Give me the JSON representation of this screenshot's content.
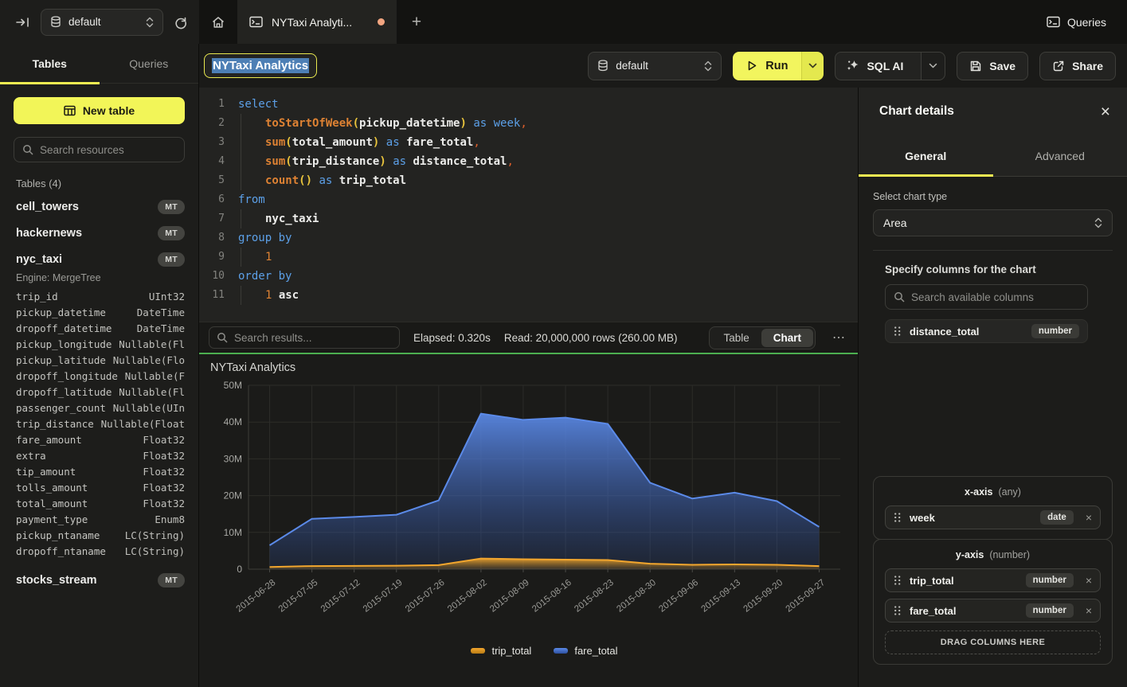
{
  "topbar": {
    "database": "default",
    "tab_title": "NYTaxi Analyti...",
    "plus_label": "+",
    "queries_label": "Queries"
  },
  "sidebar": {
    "tab_tables": "Tables",
    "tab_queries": "Queries",
    "new_table_label": "New table",
    "search_placeholder": "Search resources",
    "section_label": "Tables (4)",
    "items": [
      {
        "type": "table",
        "name": "cell_towers",
        "badge": "MT"
      },
      {
        "type": "table",
        "name": "hackernews",
        "badge": "MT"
      },
      {
        "type": "table",
        "name": "nyc_taxi",
        "badge": "MT"
      },
      {
        "type": "engine",
        "text": "Engine: MergeTree"
      },
      {
        "type": "column",
        "name": "trip_id",
        "dtype": "UInt32"
      },
      {
        "type": "column",
        "name": "pickup_datetime",
        "dtype": "DateTime"
      },
      {
        "type": "column",
        "name": "dropoff_datetime",
        "dtype": "DateTime"
      },
      {
        "type": "column",
        "name": "pickup_longitude",
        "dtype": "Nullable(Fl"
      },
      {
        "type": "column",
        "name": "pickup_latitude",
        "dtype": "Nullable(Flo"
      },
      {
        "type": "column",
        "name": "dropoff_longitude",
        "dtype": "Nullable(F"
      },
      {
        "type": "column",
        "name": "dropoff_latitude",
        "dtype": "Nullable(Fl"
      },
      {
        "type": "column",
        "name": "passenger_count",
        "dtype": "Nullable(UIn"
      },
      {
        "type": "column",
        "name": "trip_distance",
        "dtype": "Nullable(Float"
      },
      {
        "type": "column",
        "name": "fare_amount",
        "dtype": "Float32"
      },
      {
        "type": "column",
        "name": "extra",
        "dtype": "Float32"
      },
      {
        "type": "column",
        "name": "tip_amount",
        "dtype": "Float32"
      },
      {
        "type": "column",
        "name": "tolls_amount",
        "dtype": "Float32"
      },
      {
        "type": "column",
        "name": "total_amount",
        "dtype": "Float32"
      },
      {
        "type": "column",
        "name": "payment_type",
        "dtype": "Enum8"
      },
      {
        "type": "column",
        "name": "pickup_ntaname",
        "dtype": "LC(String)"
      },
      {
        "type": "column",
        "name": "dropoff_ntaname",
        "dtype": "LC(String)"
      },
      {
        "type": "gap"
      },
      {
        "type": "table",
        "name": "stocks_stream",
        "badge": "MT"
      }
    ]
  },
  "toolbar": {
    "title": "NYTaxi Analytics",
    "database": "default",
    "run_label": "Run",
    "sql_ai_label": "SQL AI",
    "save_label": "Save",
    "share_label": "Share"
  },
  "editor": {
    "lines": [
      {
        "n": 1,
        "indent": false,
        "tokens": [
          [
            "kw",
            "select"
          ]
        ]
      },
      {
        "n": 2,
        "indent": true,
        "tokens": [
          [
            "fn",
            "toStartOfWeek"
          ],
          [
            "pa",
            "("
          ],
          [
            "id",
            "pickup_datetime"
          ],
          [
            "pa",
            ")"
          ],
          [
            "tx",
            " "
          ],
          [
            "kw",
            "as"
          ],
          [
            "tx",
            " "
          ],
          [
            "kw",
            "week"
          ],
          [
            "pu",
            ","
          ]
        ]
      },
      {
        "n": 3,
        "indent": true,
        "tokens": [
          [
            "fn",
            "sum"
          ],
          [
            "pa",
            "("
          ],
          [
            "id",
            "total_amount"
          ],
          [
            "pa",
            ")"
          ],
          [
            "tx",
            " "
          ],
          [
            "kw",
            "as"
          ],
          [
            "tx",
            " "
          ],
          [
            "id",
            "fare_total"
          ],
          [
            "pu",
            ","
          ]
        ]
      },
      {
        "n": 4,
        "indent": true,
        "tokens": [
          [
            "fn",
            "sum"
          ],
          [
            "pa",
            "("
          ],
          [
            "id",
            "trip_distance"
          ],
          [
            "pa",
            ")"
          ],
          [
            "tx",
            " "
          ],
          [
            "kw",
            "as"
          ],
          [
            "tx",
            " "
          ],
          [
            "id",
            "distance_total"
          ],
          [
            "pu",
            ","
          ]
        ]
      },
      {
        "n": 5,
        "indent": true,
        "tokens": [
          [
            "fn",
            "count"
          ],
          [
            "pa",
            "()"
          ],
          [
            "tx",
            " "
          ],
          [
            "kw",
            "as"
          ],
          [
            "tx",
            " "
          ],
          [
            "id",
            "trip_total"
          ]
        ]
      },
      {
        "n": 6,
        "indent": false,
        "tokens": [
          [
            "kw",
            "from"
          ]
        ]
      },
      {
        "n": 7,
        "indent": true,
        "tokens": [
          [
            "id",
            "nyc_taxi"
          ]
        ]
      },
      {
        "n": 8,
        "indent": false,
        "tokens": [
          [
            "kw",
            "group by"
          ]
        ]
      },
      {
        "n": 9,
        "indent": true,
        "tokens": [
          [
            "nu",
            "1"
          ]
        ]
      },
      {
        "n": 10,
        "indent": false,
        "tokens": [
          [
            "kw",
            "order by"
          ]
        ]
      },
      {
        "n": 11,
        "indent": true,
        "tokens": [
          [
            "nu",
            "1"
          ],
          [
            "tx",
            " "
          ],
          [
            "id",
            "asc"
          ]
        ]
      }
    ]
  },
  "results": {
    "search_placeholder": "Search results...",
    "elapsed": "Elapsed: 0.320s",
    "read": "Read: 20,000,000 rows (260.00 MB)",
    "toggle_table": "Table",
    "toggle_chart": "Chart",
    "menu": "⋯",
    "progress_color": "#4caf50"
  },
  "chart_data": {
    "type": "area",
    "title": "NYTaxi Analytics",
    "x": [
      "2015-06-28",
      "2015-07-05",
      "2015-07-12",
      "2015-07-19",
      "2015-07-26",
      "2015-08-02",
      "2015-08-09",
      "2015-08-16",
      "2015-08-23",
      "2015-08-30",
      "2015-09-06",
      "2015-09-13",
      "2015-09-20",
      "2015-09-27"
    ],
    "series": [
      {
        "name": "trip_total",
        "color": "#f2a62e",
        "color_dark": "#b97c14",
        "values": [
          600000,
          850000,
          900000,
          950000,
          1100000,
          2900000,
          2700000,
          2600000,
          2500000,
          1500000,
          1200000,
          1300000,
          1200000,
          850000
        ]
      },
      {
        "name": "fare_total",
        "color": "#5b8ae8",
        "color_dark": "#2d4f9e",
        "values": [
          6500000,
          13700000,
          14200000,
          14800000,
          18700000,
          42300000,
          40600000,
          41200000,
          39500000,
          23500000,
          19200000,
          20800000,
          18500000,
          11500000
        ]
      }
    ],
    "ylim": [
      0,
      50000000
    ],
    "yticks": [
      "0",
      "10M",
      "20M",
      "30M",
      "40M",
      "50M"
    ],
    "grid": true,
    "legend_position": "bottom"
  },
  "panel": {
    "title": "Chart details",
    "close": "×",
    "tab_general": "General",
    "tab_advanced": "Advanced",
    "chart_type_label": "Select chart type",
    "chart_type": "Area",
    "columns_label": "Specify columns for the chart",
    "search_placeholder": "Search available columns",
    "available": [
      {
        "name": "distance_total",
        "type": "number"
      }
    ],
    "x_axis": {
      "label": "x-axis",
      "hint": "(any)",
      "items": [
        {
          "name": "week",
          "type": "date"
        }
      ]
    },
    "y_axis": {
      "label": "y-axis",
      "hint": "(number)",
      "items": [
        {
          "name": "trip_total",
          "type": "number"
        },
        {
          "name": "fare_total",
          "type": "number"
        }
      ]
    },
    "drop_label": "DRAG COLUMNS HERE"
  }
}
